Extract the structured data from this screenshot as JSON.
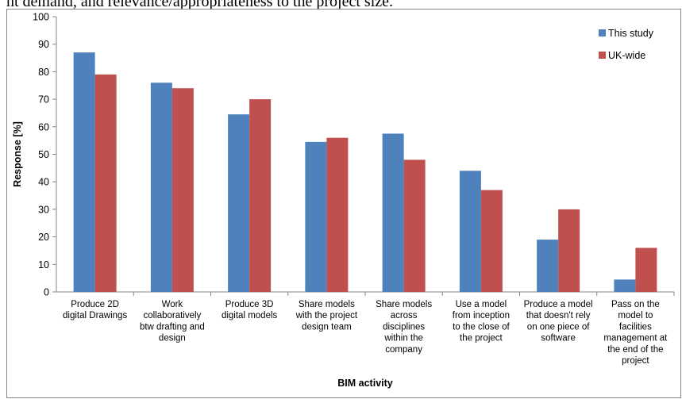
{
  "caption_fragment": "nt demand, and relevance/appropriateness to the project size.",
  "chart_data": {
    "type": "bar",
    "title": "",
    "xlabel": "BIM activity",
    "ylabel": "Response [%]",
    "ylim": [
      0,
      100
    ],
    "yticks": [
      0,
      10,
      20,
      30,
      40,
      50,
      60,
      70,
      80,
      90,
      100
    ],
    "grid": false,
    "legend_position": "top-right",
    "categories": [
      [
        "Produce 2D",
        "digital Drawings"
      ],
      [
        "Work",
        "collaboratively",
        "btw drafting and",
        "design"
      ],
      [
        "Produce 3D",
        "digital models"
      ],
      [
        "Share models",
        "with the project",
        "design team"
      ],
      [
        "Share models",
        "across",
        "disciplines",
        "within the",
        "company"
      ],
      [
        "Use a model",
        "from inception",
        "to the close of",
        "the project"
      ],
      [
        "Produce a model",
        "that doesn't rely",
        "on one piece of",
        "software"
      ],
      [
        "Pass on the",
        "model to",
        "facilities",
        "management at",
        "the end of the",
        "project"
      ]
    ],
    "series": [
      {
        "name": "This study",
        "color": "#4F81BD",
        "values": [
          87,
          76,
          64.5,
          54.5,
          57.5,
          44,
          19,
          4.5
        ]
      },
      {
        "name": "UK-wide",
        "color": "#C0504D",
        "values": [
          79,
          74,
          70,
          56,
          48,
          37,
          30,
          16
        ]
      }
    ]
  }
}
